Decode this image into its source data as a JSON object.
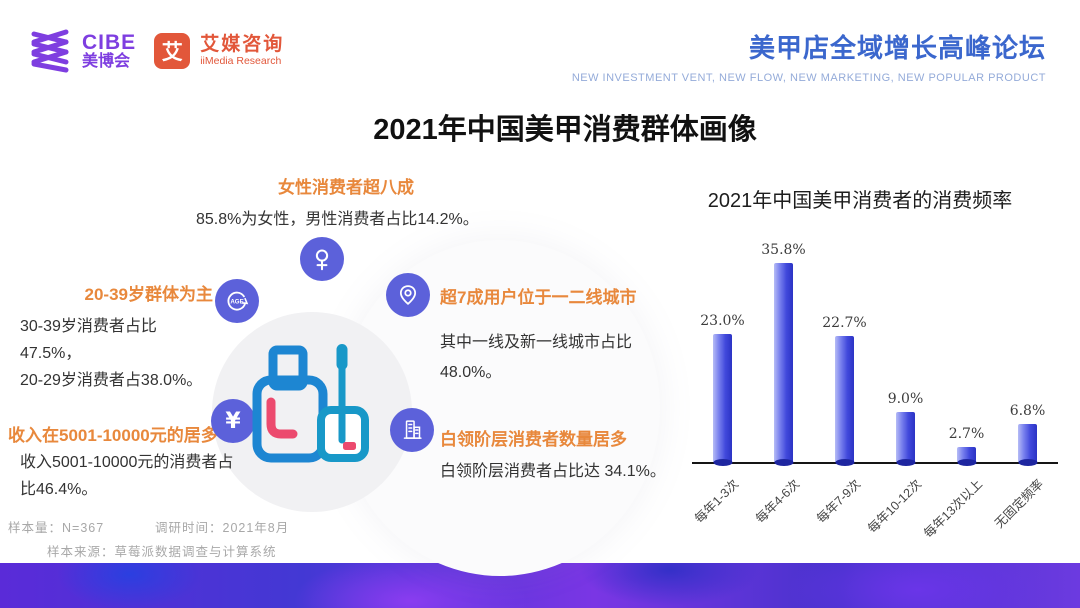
{
  "header": {
    "cibe": {
      "name": "CIBE",
      "sub": "美博会"
    },
    "imedia": {
      "glyph": "艾",
      "name": "艾媒咨询",
      "sub": "iiMedia Research"
    },
    "event_title": "美甲店全域增长高峰论坛",
    "event_subtitle": "NEW INVESTMENT VENT, NEW FLOW, NEW MARKETING, NEW POPULAR PRODUCT"
  },
  "page_title": "2021年中国美甲消费群体画像",
  "profile": {
    "gender": {
      "heading": "女性消费者超八成",
      "body": "85.8%为女性，男性消费者占比14.2%。",
      "icon": "female-icon"
    },
    "age": {
      "heading": "20-39岁群体为主",
      "line1": "30-39岁消费者占比",
      "line2": "47.5%，",
      "line3": "20-29岁消费者占38.0%。",
      "icon": "age-cycle-icon",
      "icon_label": "AGE"
    },
    "income": {
      "heading": "收入在5001-10000元的居多",
      "line1": "收入5001-10000元的消费者占",
      "line2": "比46.4%。",
      "icon": "yen-icon",
      "icon_glyph": "¥"
    },
    "city": {
      "heading": "超7成用户位于一二线城市",
      "line1": "其中一线及新一线城市占比",
      "line2": "48.0%。",
      "icon": "location-icon"
    },
    "occupation": {
      "heading": "白领阶层消费者数量居多",
      "line1": "白领阶层消费者占比达 34.1%。",
      "icon": "building-icon"
    }
  },
  "chart_data": {
    "type": "bar",
    "title": "2021年中国美甲消费者的消费频率",
    "categories": [
      "每年1-3次",
      "每年4-6次",
      "每年7-9次",
      "每年10-12次",
      "每年13次以上",
      "无固定频率"
    ],
    "values": [
      23.0,
      35.8,
      22.7,
      9.0,
      2.7,
      6.8
    ],
    "labels": [
      "23.0%",
      "35.8%",
      "22.7%",
      "9.0%",
      "2.7%",
      "6.8%"
    ],
    "xlabel": "",
    "ylabel": "",
    "ylim": [
      0,
      40
    ],
    "grid": false,
    "legend": "none",
    "bar_color_light": "#b6bcf6",
    "bar_color_dark": "#2b33c4"
  },
  "footer": {
    "sample_size": "样本量：N=367",
    "survey_time": "调研时间：2021年8月",
    "sample_source": "样本来源：草莓派数据调查与计算系统"
  },
  "colors": {
    "accent_orange": "#e8883c",
    "brand_purple": "#7e3ee0",
    "brand_orange": "#e2573a",
    "event_blue": "#3b67cd",
    "icon_circle": "#5c61da",
    "band_purple": "#5a2bd8"
  }
}
